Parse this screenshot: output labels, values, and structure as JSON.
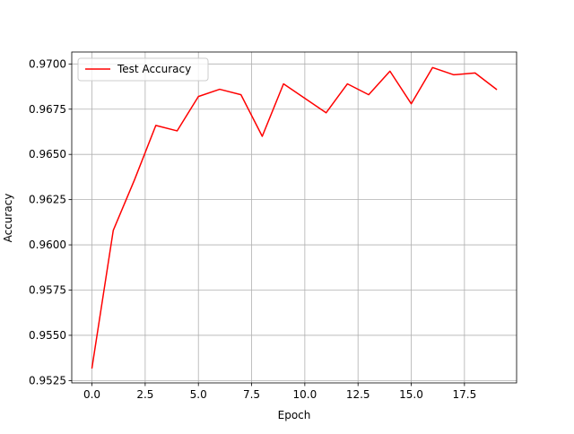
{
  "chart_data": {
    "type": "line",
    "title": "",
    "xlabel": "Epoch",
    "ylabel": "Accuracy",
    "xlim": [
      -0.95,
      19.95
    ],
    "ylim": [
      0.95237,
      0.97066
    ],
    "x_ticks": [
      0.0,
      2.5,
      5.0,
      7.5,
      10.0,
      12.5,
      15.0,
      17.5
    ],
    "x_tick_labels": [
      "0.0",
      "2.5",
      "5.0",
      "7.5",
      "10.0",
      "12.5",
      "15.0",
      "17.5"
    ],
    "y_ticks": [
      0.9525,
      0.955,
      0.9575,
      0.96,
      0.9625,
      0.965,
      0.9675,
      0.97
    ],
    "y_tick_labels": [
      "0.9525",
      "0.9550",
      "0.9575",
      "0.9600",
      "0.9625",
      "0.9650",
      "0.9675",
      "0.9700"
    ],
    "grid": true,
    "legend_position": "top-left",
    "series": [
      {
        "name": "Test Accuracy",
        "color": "#ff0000",
        "x": [
          0,
          1,
          2,
          3,
          4,
          5,
          6,
          7,
          8,
          9,
          10,
          11,
          12,
          13,
          14,
          15,
          16,
          17,
          18,
          19
        ],
        "values": [
          0.9532,
          0.9608,
          0.9636,
          0.9666,
          0.9663,
          0.9682,
          0.9686,
          0.9683,
          0.966,
          0.9689,
          0.9681,
          0.9673,
          0.9689,
          0.9683,
          0.9696,
          0.9678,
          0.9698,
          0.9694,
          0.9695,
          0.9686
        ]
      }
    ]
  }
}
